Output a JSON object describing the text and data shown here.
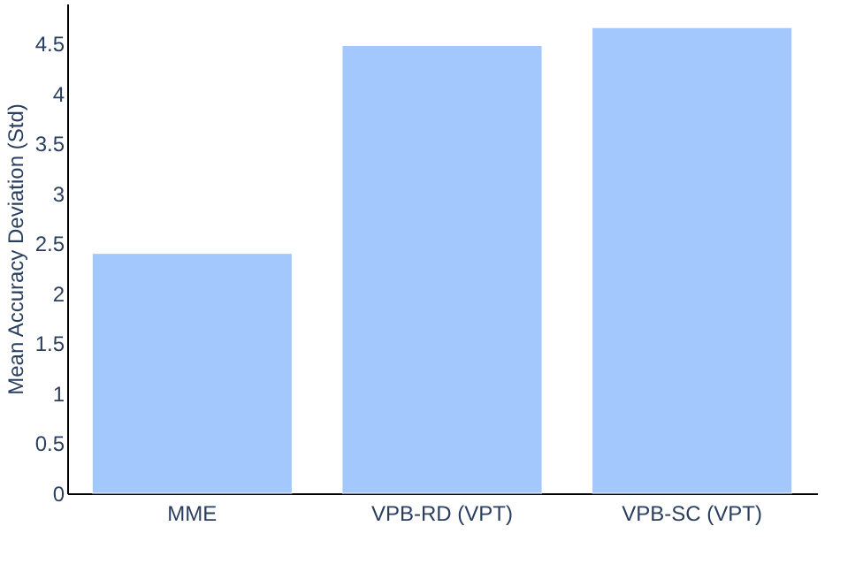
{
  "chart_data": {
    "type": "bar",
    "ylabel": "Mean Accuracy Deviation (Std)",
    "categories": [
      "MME",
      "VPB-RD (VPT)",
      "VPB-SC (VPT)"
    ],
    "values": [
      2.4,
      4.48,
      4.66
    ],
    "color": "#a3c8fd",
    "ylim": [
      0,
      4.9
    ],
    "yticks": [
      0,
      0.5,
      1,
      1.5,
      2,
      2.5,
      3,
      3.5,
      4,
      4.5
    ],
    "grid": false
  }
}
